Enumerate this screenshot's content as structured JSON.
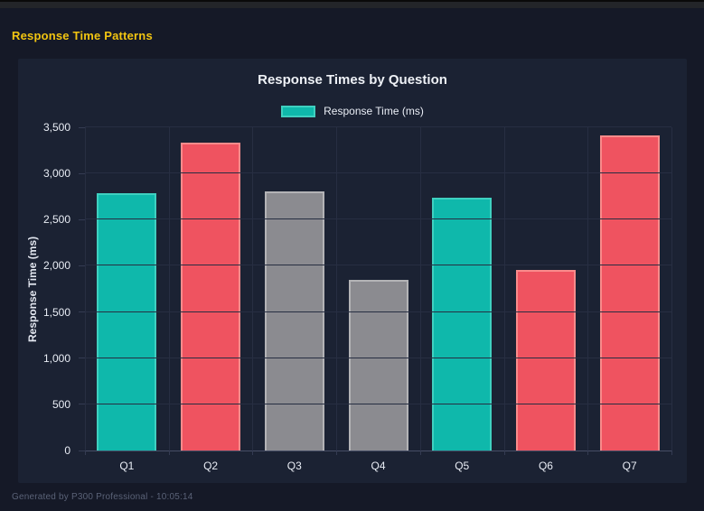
{
  "page": {
    "title": "Response Time Patterns",
    "title_color": "#f2c511",
    "footer": "Generated by P300 Professional - 10:05:14"
  },
  "chart_data": {
    "type": "bar",
    "title": "Response Times by Question",
    "legend": [
      {
        "label": "Response Time (ms)",
        "fill": "#0fb8ab",
        "border": "#3fd0c0"
      }
    ],
    "legend_position": "top",
    "categories": [
      "Q1",
      "Q2",
      "Q3",
      "Q4",
      "Q5",
      "Q6",
      "Q7"
    ],
    "values": [
      2790,
      3330,
      2810,
      1850,
      2740,
      1960,
      3410
    ],
    "bar_colors": [
      {
        "fill": "#0fb8ab",
        "border": "#3fd0c0"
      },
      {
        "fill": "#ef5360",
        "border": "#f98b8b"
      },
      {
        "fill": "#8b8b90",
        "border": "#b3b3b6"
      },
      {
        "fill": "#8b8b90",
        "border": "#b3b3b6"
      },
      {
        "fill": "#0fb8ab",
        "border": "#3fd0c0"
      },
      {
        "fill": "#ef5360",
        "border": "#f98b8b"
      },
      {
        "fill": "#ef5360",
        "border": "#f98b8b"
      }
    ],
    "xlabel": "",
    "ylabel": "Response Time (ms)",
    "ylim": [
      0,
      3500
    ],
    "y_ticks": [
      0,
      500,
      1000,
      1500,
      2000,
      2500,
      3000,
      3500
    ],
    "y_tick_labels": [
      "0",
      "500",
      "1,000",
      "1,500",
      "2,000",
      "2,500",
      "3,000",
      "3,500"
    ],
    "grid": true
  }
}
